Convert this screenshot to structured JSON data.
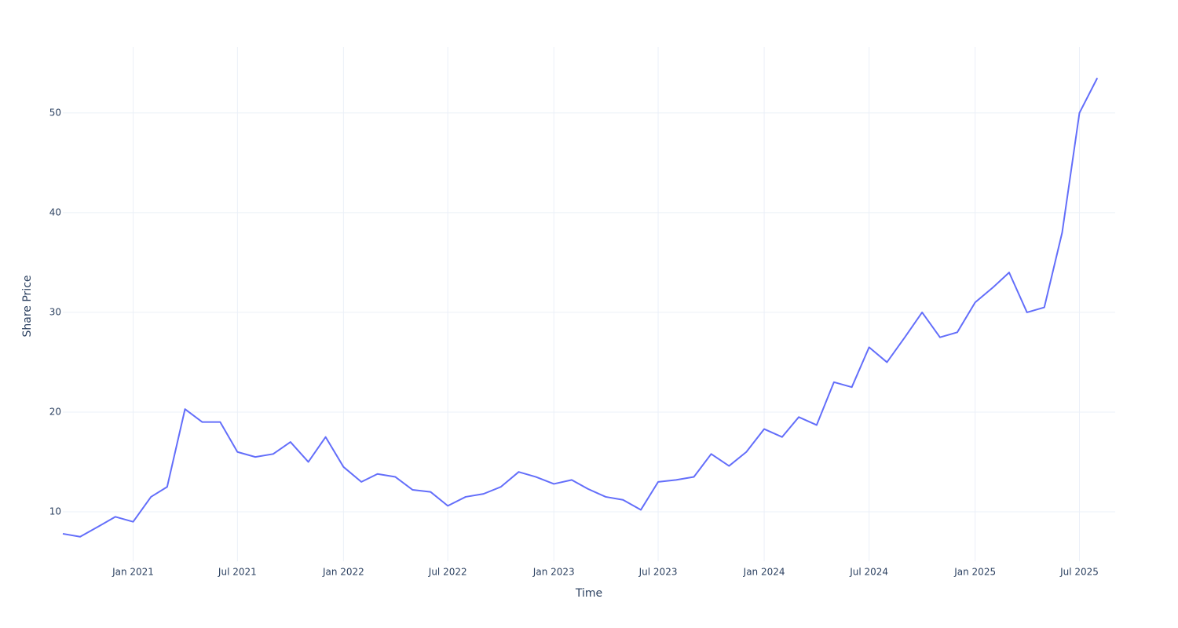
{
  "chart_data": {
    "type": "line",
    "x_label": "Time",
    "y_label": "Share Price",
    "x": [
      "2020-09",
      "2020-10",
      "2020-11",
      "2020-12",
      "2021-01",
      "2021-02",
      "2021-03",
      "2021-04",
      "2021-05",
      "2021-06",
      "2021-07",
      "2021-08",
      "2021-09",
      "2021-10",
      "2021-11",
      "2021-12",
      "2022-01",
      "2022-02",
      "2022-03",
      "2022-04",
      "2022-05",
      "2022-06",
      "2022-07",
      "2022-08",
      "2022-09",
      "2022-10",
      "2022-11",
      "2022-12",
      "2023-01",
      "2023-02",
      "2023-03",
      "2023-04",
      "2023-05",
      "2023-06",
      "2023-07",
      "2023-08",
      "2023-09",
      "2023-10",
      "2023-11",
      "2023-12",
      "2024-01",
      "2024-02",
      "2024-03",
      "2024-04",
      "2024-05",
      "2024-06",
      "2024-07",
      "2024-08",
      "2024-09",
      "2024-10",
      "2024-11",
      "2024-12",
      "2025-01",
      "2025-02",
      "2025-03",
      "2025-04",
      "2025-05",
      "2025-06",
      "2025-07",
      "2025-08"
    ],
    "values": [
      7.8,
      7.5,
      8.5,
      9.5,
      9.0,
      11.5,
      12.5,
      20.3,
      19.0,
      19.0,
      16.0,
      15.5,
      15.8,
      17.0,
      15.0,
      17.5,
      14.5,
      13.0,
      13.8,
      13.5,
      12.2,
      12.0,
      10.6,
      11.5,
      11.8,
      12.5,
      14.0,
      13.5,
      12.8,
      13.2,
      12.3,
      11.5,
      11.2,
      10.2,
      13.0,
      13.2,
      13.5,
      15.8,
      14.6,
      16.0,
      18.3,
      17.5,
      19.5,
      18.7,
      23.0,
      22.5,
      26.5,
      25.0,
      27.5,
      30.0,
      27.5,
      28.0,
      31.0,
      32.5,
      34.0,
      30.0,
      30.5,
      38.0,
      50.0,
      53.5
    ],
    "color": "#636efa",
    "xlim": [
      "2020-09",
      "2025-09"
    ],
    "xticks": [
      {
        "value": "2021-01",
        "label": "Jan 2021"
      },
      {
        "value": "2021-07",
        "label": "Jul 2021"
      },
      {
        "value": "2022-01",
        "label": "Jan 2022"
      },
      {
        "value": "2022-07",
        "label": "Jul 2022"
      },
      {
        "value": "2023-01",
        "label": "Jan 2023"
      },
      {
        "value": "2023-07",
        "label": "Jul 2023"
      },
      {
        "value": "2024-01",
        "label": "Jan 2024"
      },
      {
        "value": "2024-07",
        "label": "Jul 2024"
      },
      {
        "value": "2025-01",
        "label": "Jan 2025"
      },
      {
        "value": "2025-07",
        "label": "Jul 2025"
      }
    ],
    "ylim": [
      5.04,
      56.6
    ],
    "yticks": [
      10,
      20,
      30,
      40,
      50
    ],
    "grid": true
  }
}
